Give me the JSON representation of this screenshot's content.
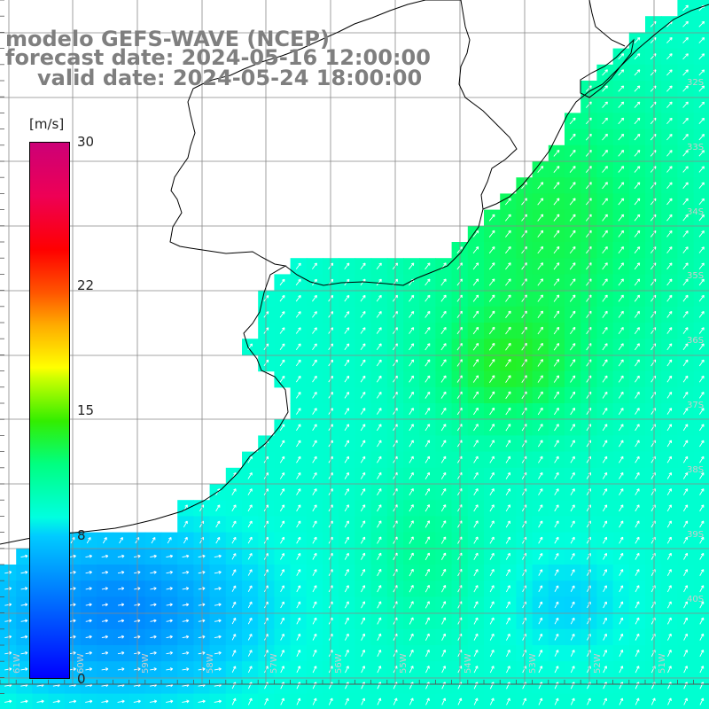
{
  "title": {
    "model": "modelo GEFS-WAVE (NCEP)",
    "forecast": "forecast date: 2024-05-16 12:00:00",
    "valid": "valid date: 2024-05-24 18:00:00"
  },
  "colorbar": {
    "units": "[m/s]",
    "ticks": [
      {
        "value": 30,
        "label": "30"
      },
      {
        "value": 22,
        "label": "22"
      },
      {
        "value": 15,
        "label": "15"
      },
      {
        "value": 8,
        "label": "8"
      },
      {
        "value": 0,
        "label": "0"
      }
    ]
  },
  "colors": {
    "land": "#ffffff",
    "grid": "#888888",
    "coast": "#000000",
    "arrows": "#ffffff",
    "title": "#7f7f7f"
  },
  "lat_labels": [
    "32S",
    "33S",
    "34S",
    "35S",
    "36S",
    "37S",
    "38S",
    "39S",
    "40S"
  ],
  "lon_labels": [
    "61W",
    "60W",
    "59W",
    "58W",
    "57W",
    "56W",
    "55W",
    "54W",
    "53W",
    "52W",
    "51W"
  ]
}
